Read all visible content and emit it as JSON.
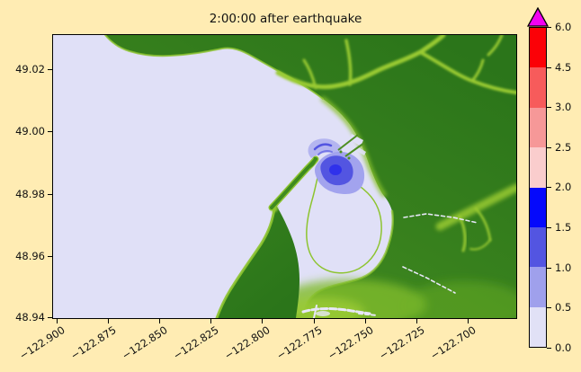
{
  "figure": {
    "title": "2:00:00 after earthquake",
    "background_color": "#FFECB3"
  },
  "axes": {
    "y_ticks": [
      {
        "label": "49.02",
        "pos": 37
      },
      {
        "label": "49.00",
        "pos": 106
      },
      {
        "label": "48.98",
        "pos": 176
      },
      {
        "label": "48.96",
        "pos": 245
      },
      {
        "label": "48.94",
        "pos": 313
      }
    ],
    "x_ticks": [
      {
        "label": "−122.900",
        "pos": 3
      },
      {
        "label": "−122.875",
        "pos": 60
      },
      {
        "label": "−122.850",
        "pos": 117
      },
      {
        "label": "−122.825",
        "pos": 174
      },
      {
        "label": "−122.800",
        "pos": 231
      },
      {
        "label": "−122.775",
        "pos": 289
      },
      {
        "label": "−122.750",
        "pos": 346
      },
      {
        "label": "−122.725",
        "pos": 403
      },
      {
        "label": "−122.700",
        "pos": 460
      }
    ]
  },
  "colorbar": {
    "ticks": [
      {
        "label": "6.0",
        "pos": 0
      },
      {
        "label": "4.5",
        "pos": 45
      },
      {
        "label": "3.0",
        "pos": 89
      },
      {
        "label": "2.5",
        "pos": 134
      },
      {
        "label": "2.0",
        "pos": 178
      },
      {
        "label": "1.5",
        "pos": 223
      },
      {
        "label": "1.0",
        "pos": 268
      },
      {
        "label": "0.5",
        "pos": 312
      },
      {
        "label": "0.0",
        "pos": 357
      }
    ],
    "segments_top_to_bottom": [
      "#FB0107",
      "#F75B5B",
      "#F69898",
      "#FACDCD",
      "#0509FB",
      "#5355E1",
      "#9FA0EC",
      "#E1E1F6"
    ],
    "over_color": "#F202F2"
  },
  "map_colors": {
    "water": "#E0E0F7",
    "land_dark": "#2B751A",
    "land_mid": "#478F20",
    "lowland": "#8DC42F",
    "valley": "#9ACB33",
    "spit_green": "#3E8A1F",
    "jetty_green": "#4E8F22",
    "creek_white": "#E7E7F8",
    "wave_light": "#B4B5F0",
    "wave_mid": "#A2A3EE",
    "wave_core": "#5355E1",
    "wave_peak": "#2B2EEC",
    "delta_lime": "#7FBC2A"
  },
  "chart_data": {
    "type": "heatmap",
    "title": "2:00:00 after earthquake",
    "xlabel": "",
    "ylabel": "",
    "x_tick_values": [
      -122.9,
      -122.875,
      -122.85,
      -122.825,
      -122.8,
      -122.775,
      -122.75,
      -122.725,
      -122.7
    ],
    "y_tick_values": [
      48.94,
      48.96,
      48.98,
      49.0,
      49.02
    ],
    "xlim": [
      -122.901,
      -122.676
    ],
    "ylim": [
      48.939,
      49.031
    ],
    "grid": false,
    "colorbar_position": "right",
    "colorbar_boundaries": [
      0.0,
      0.5,
      1.0,
      1.5,
      2.0,
      2.5,
      3.0,
      4.5,
      6.0
    ],
    "colorbar_colors_low_to_high": [
      "#E1E1F6",
      "#9FA0EC",
      "#5355E1",
      "#0509FB",
      "#FACDCD",
      "#F69898",
      "#F75B5B",
      "#FB0107"
    ],
    "colorbar_over_color": "#F202F2",
    "notes": "Coastal tsunami-simulation frame: open water plotted in lowest band (0.0–0.5); an amplitude patch at a harbor mouth near (−122.775, 48.987) reaches the 0.5–1.0 and 1.0–1.5 bands; green terrain with lighter river valleys occupies the northeast and southeast; no red (>2.0) values present on the map."
  }
}
